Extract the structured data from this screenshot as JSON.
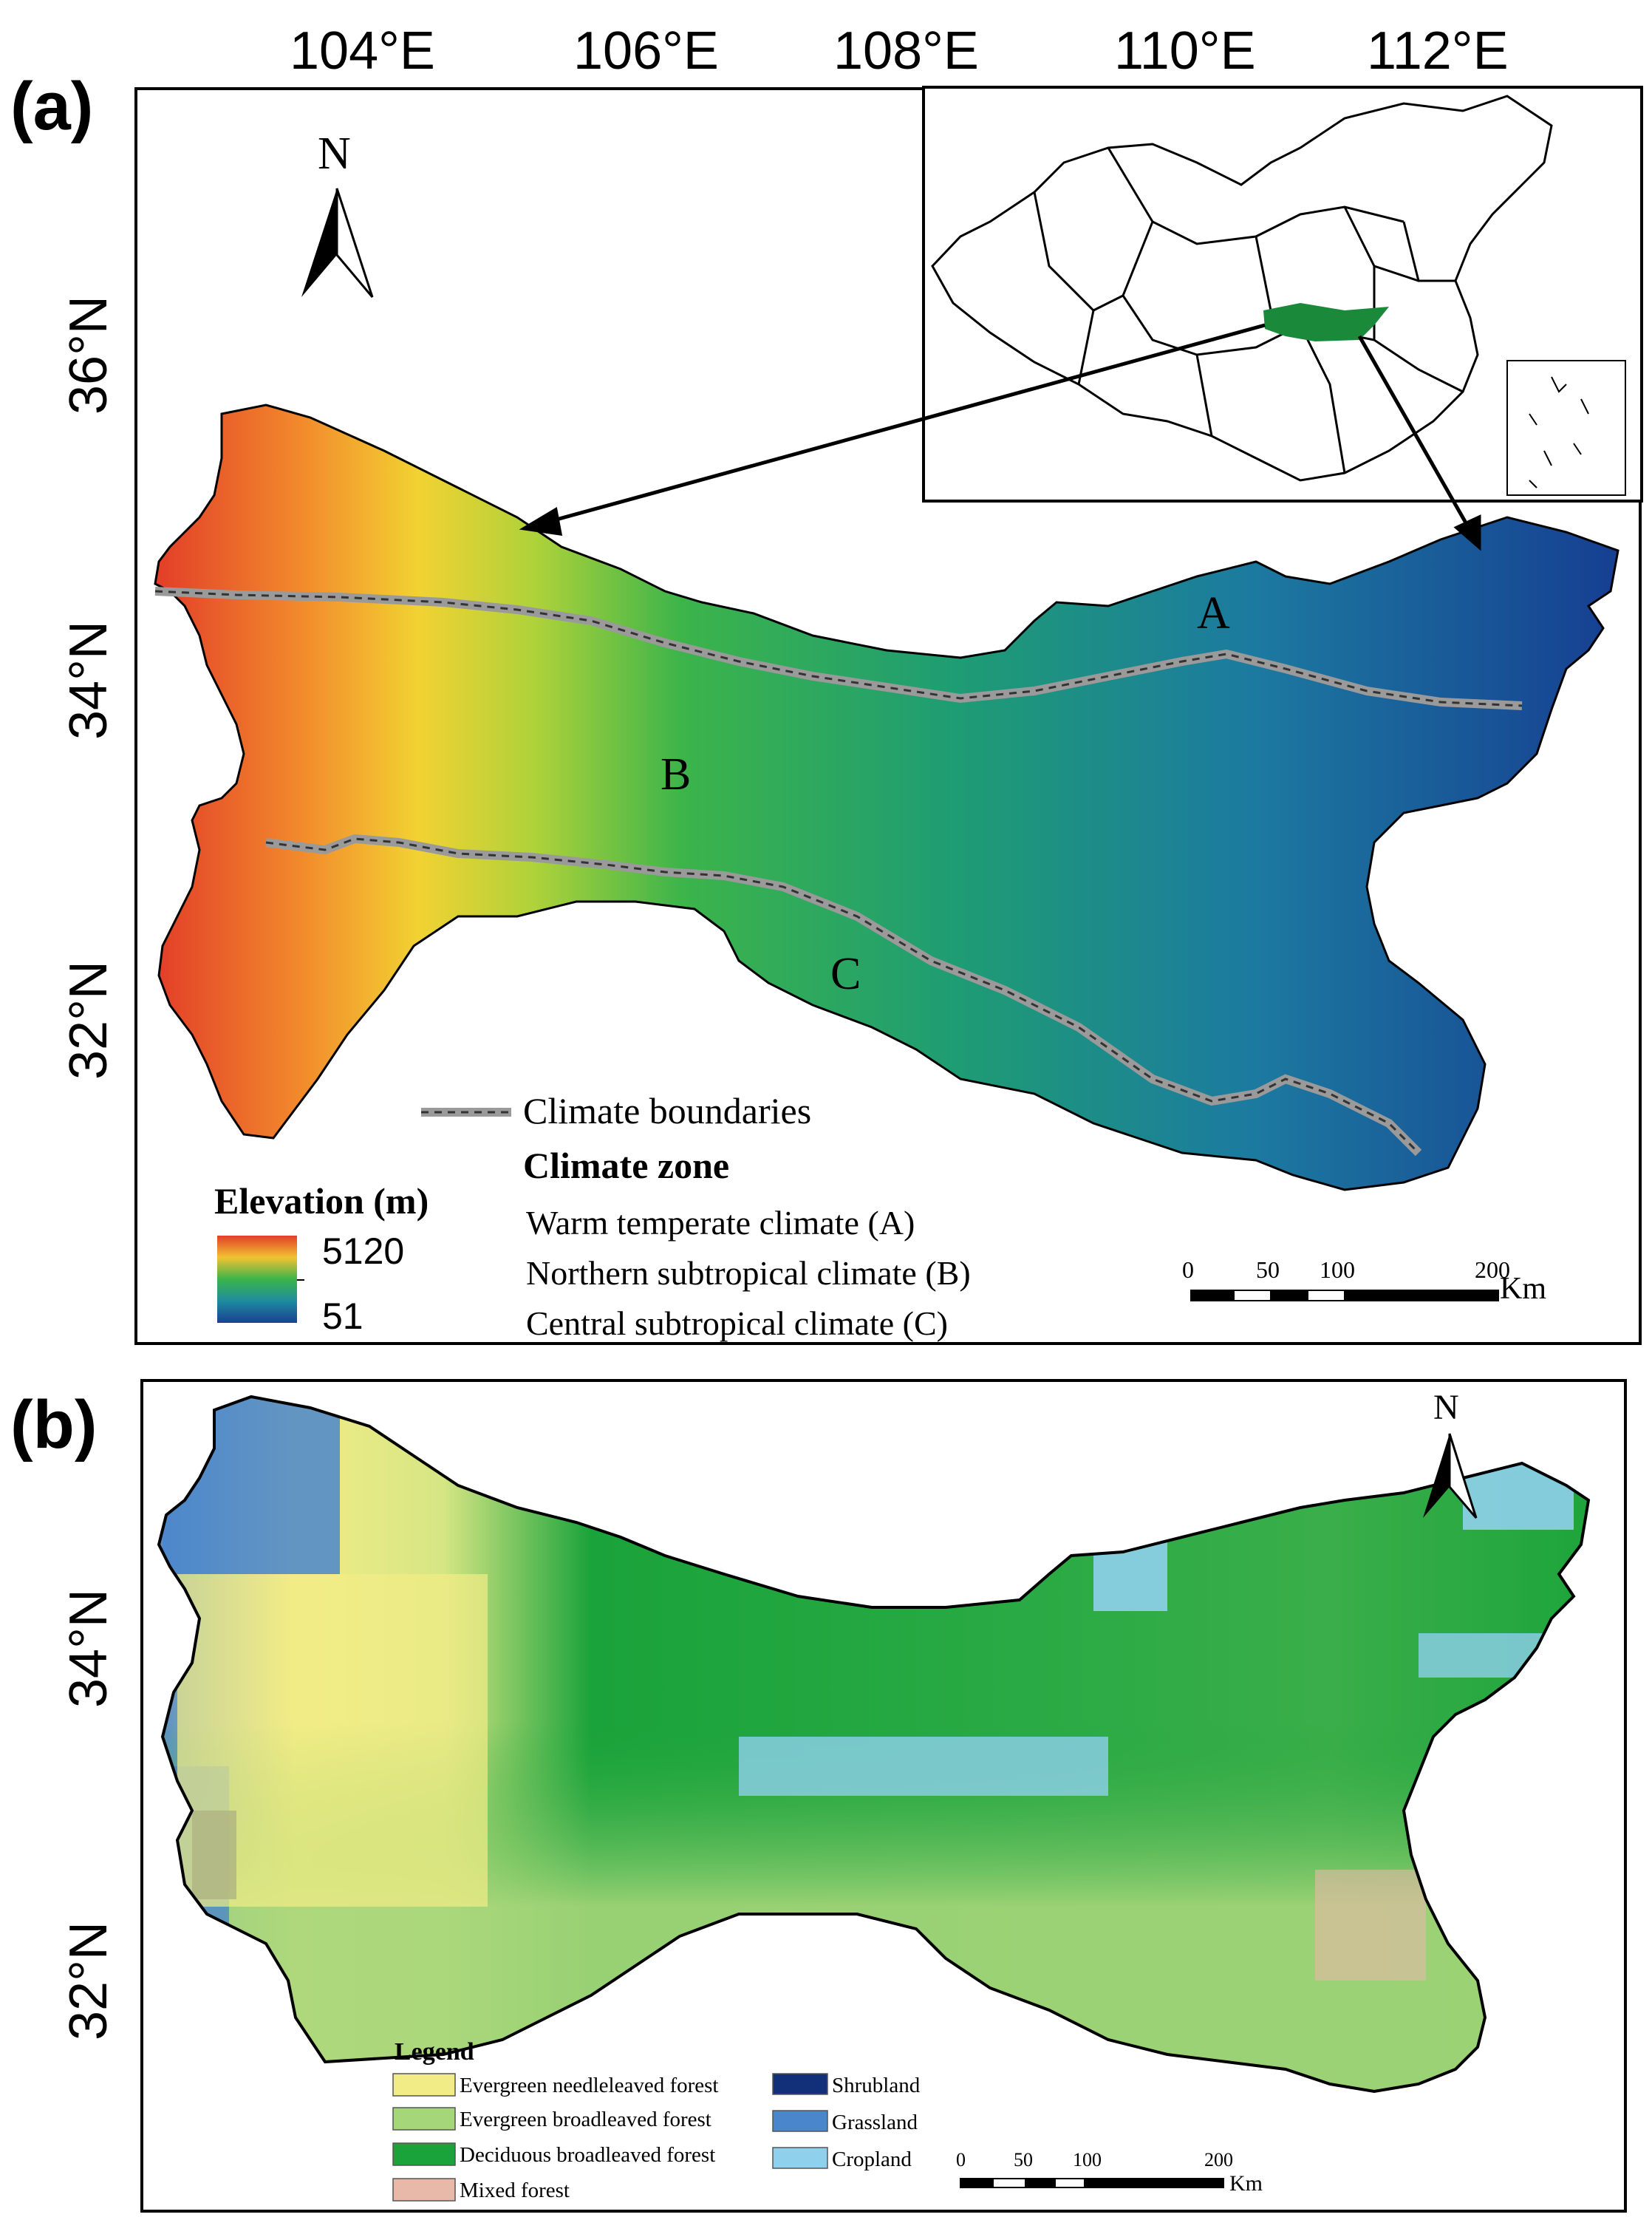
{
  "panel_a": {
    "label": "(a)",
    "lon_ticks": [
      "104°E",
      "106°E",
      "108°E",
      "110°E",
      "112°E"
    ],
    "lat_ticks": [
      "36°N",
      "34°N",
      "32°N"
    ],
    "north": "N",
    "zones": [
      "A",
      "B",
      "C"
    ],
    "boundary_label": "Climate boundaries",
    "zone_title": "Climate zone",
    "zone_items": [
      "Warm temperate climate (A)",
      "Northern subtropical climate (B)",
      "Central subtropical climate (C)"
    ],
    "elevation_title": "Elevation (m)",
    "elevation_max": "5120",
    "elevation_min": "51",
    "scale_ticks": [
      "0",
      "50",
      "100",
      "200"
    ],
    "scale_unit": "Km",
    "colors": {
      "high": "#e8442a",
      "mid": "#2ab04a",
      "low": "#1a4f9a"
    }
  },
  "panel_b": {
    "label": "(b)",
    "lat_ticks": [
      "34°N",
      "32°N"
    ],
    "north": "N",
    "legend_title": "Legend",
    "legend": [
      {
        "label": "Evergreen needleleaved forest",
        "color": "#f2ec86"
      },
      {
        "label": "Evergreen broadleaved forest",
        "color": "#a6d67a"
      },
      {
        "label": "Deciduous broadleaved forest",
        "color": "#1aa33a"
      },
      {
        "label": "Mixed forest",
        "color": "#e8b9a8"
      },
      {
        "label": "Shrubland",
        "color": "#12307a"
      },
      {
        "label": "Grassland",
        "color": "#4a86cc"
      },
      {
        "label": "Cropland",
        "color": "#8fd0ec"
      }
    ],
    "scale_ticks": [
      "0",
      "50",
      "100",
      "200"
    ],
    "scale_unit": "Km"
  }
}
